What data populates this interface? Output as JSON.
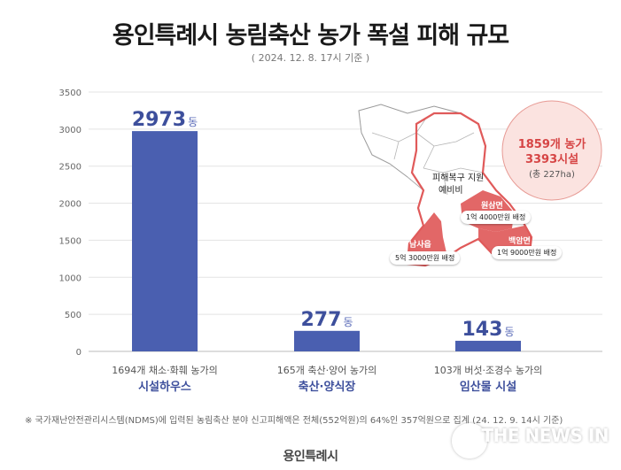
{
  "page": {
    "title": "용인특례시 농림축산 농가 폭설 피해 규모",
    "subtitle": "( 2024. 12. 8. 17시 기준 )",
    "footnote": "※ 국가재난안전관리시스템(NDMS)에 입력된 농림축산 분야 신고피해액은 전체(552억원)의 64%인 357억원으로 집계 (24. 12. 9. 14시 기준)",
    "logo": "용인특례시",
    "watermark": "THE NEWS IN"
  },
  "chart_data": {
    "type": "bar",
    "ylim": [
      0,
      3500
    ],
    "yticks": [
      "0",
      "500",
      "1000",
      "1500",
      "2000",
      "2500",
      "3000",
      "3500"
    ],
    "grid": true,
    "color": "#4a5fb0",
    "unit": "동",
    "categories": [
      {
        "desc": "1694개 채소·화훼 농가의",
        "name": "시설하우스"
      },
      {
        "desc": "165개 축산·양어 농가의",
        "name": "축산·양식장"
      },
      {
        "desc": "103개 버섯·조경수 농가의",
        "name": "임산물 시설"
      }
    ],
    "values": [
      2973,
      277,
      143
    ],
    "value_labels": [
      "2973",
      "277",
      "143"
    ]
  },
  "map": {
    "total_line1": "1859개 농가",
    "total_line2": "3393시설",
    "total_area": "(총 227ha)",
    "center_label1": "피해복구 지원",
    "center_label2": "예비비",
    "areas": [
      {
        "name": "원삼면",
        "amount": "1억 4000만원 배정"
      },
      {
        "name": "백암면",
        "amount": "1억 9000만원 배정"
      },
      {
        "name": "남사읍",
        "amount": "5억 3000만원 배정"
      }
    ],
    "highlight_color": "#e05a5a"
  }
}
